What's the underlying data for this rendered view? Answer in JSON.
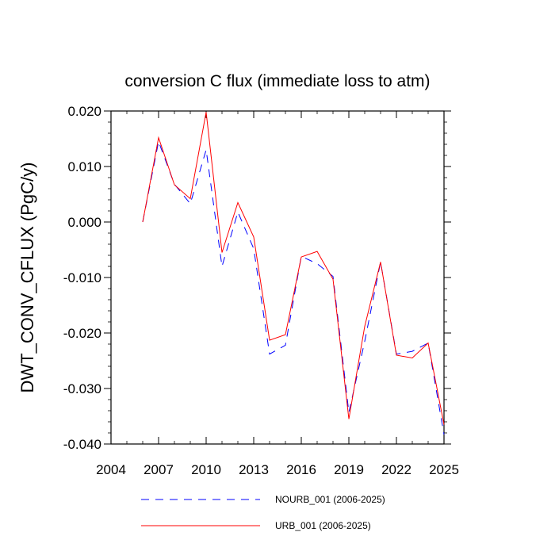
{
  "chart_data": {
    "type": "line",
    "title": "conversion C flux (immediate loss to atm)",
    "xlabel": "",
    "ylabel": "DWT_CONV_CFLUX  (PgC/y)",
    "xlim": [
      2004,
      2025
    ],
    "ylim": [
      -0.04,
      0.02
    ],
    "x_ticks": [
      "2004",
      "2007",
      "2010",
      "2013",
      "2016",
      "2019",
      "2022",
      "2025"
    ],
    "y_ticks": [
      "0.020",
      "0.010",
      "0.000",
      "-0.010",
      "-0.020",
      "-0.030",
      "-0.040"
    ],
    "grid": false,
    "legend_placement": "bottom",
    "x": [
      2006,
      2007,
      2008,
      2009,
      2010,
      2011,
      2012,
      2013,
      2014,
      2015,
      2016,
      2017,
      2018,
      2019,
      2020,
      2021,
      2022,
      2023,
      2024,
      2025
    ],
    "series": [
      {
        "name": "NOURB_001 (2006-2025)",
        "color": "#0000ff",
        "dash": "dashed",
        "values": [
          0.0,
          0.0145,
          0.0068,
          0.0033,
          0.013,
          -0.008,
          0.0018,
          -0.0048,
          -0.0238,
          -0.0222,
          -0.0062,
          -0.0075,
          -0.0098,
          -0.0343,
          -0.0215,
          -0.0072,
          -0.0238,
          -0.0233,
          -0.0218,
          -0.0383
        ]
      },
      {
        "name": "URB_001 (2006-2025)",
        "color": "#ff0000",
        "dash": "solid",
        "values": [
          0.0,
          0.0152,
          0.0067,
          0.0042,
          0.0198,
          -0.0055,
          0.0035,
          -0.0027,
          -0.0213,
          -0.0203,
          -0.0063,
          -0.0053,
          -0.0103,
          -0.0355,
          -0.0188,
          -0.0072,
          -0.024,
          -0.0245,
          -0.0218,
          -0.0365
        ]
      }
    ]
  }
}
